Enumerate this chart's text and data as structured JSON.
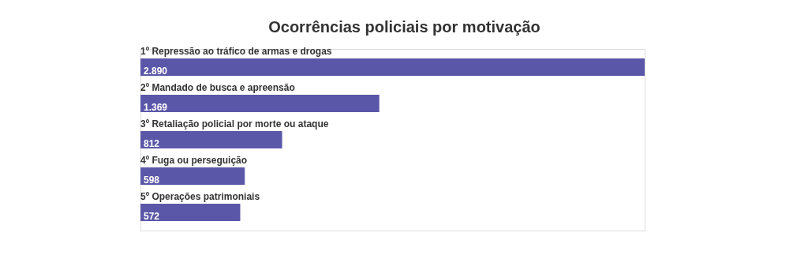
{
  "chart_data": {
    "type": "bar",
    "orientation": "horizontal",
    "title": "Ocorrências policiais por motivação",
    "categories": [
      "1º Repressão ao tráfico de armas e drogas",
      "2º Mandado de busca e apreensão",
      "3º Retaliação policial por morte ou ataque",
      "4º Fuga ou perseguição",
      "5º Operações patrimoniais"
    ],
    "values": [
      2890,
      1369,
      812,
      598,
      572
    ],
    "value_labels": [
      "2.890",
      "1.369",
      "812",
      "598",
      "572"
    ],
    "color": "#5b57a8"
  }
}
